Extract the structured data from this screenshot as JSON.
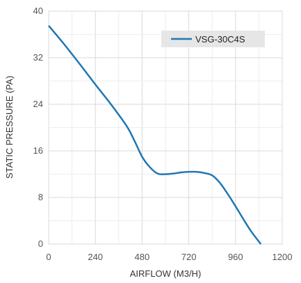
{
  "chart_data": {
    "type": "line",
    "title": "",
    "xlabel": "AIRFLOW (M3/H)",
    "ylabel": "STATIC PRESSURE (PA)",
    "xlim": [
      0,
      1200
    ],
    "ylim": [
      0,
      40
    ],
    "x_ticks": [
      "0",
      "240",
      "480",
      "720",
      "960",
      "1200"
    ],
    "y_ticks": [
      "0",
      "8",
      "16",
      "24",
      "32",
      "40"
    ],
    "grid": true,
    "legend": "top-right",
    "series": [
      {
        "name": "VSG-30C4S",
        "color": "#1f77b4",
        "x": [
          0,
          80,
          160,
          240,
          320,
          400,
          440,
          480,
          520,
          560,
          600,
          640,
          680,
          720,
          760,
          800,
          840,
          880,
          920,
          960,
          1000,
          1040,
          1090
        ],
        "y": [
          37.5,
          34.3,
          30.9,
          27.4,
          24.0,
          20.3,
          17.8,
          15.0,
          13.2,
          12.1,
          12.0,
          12.1,
          12.3,
          12.4,
          12.4,
          12.2,
          11.8,
          10.5,
          8.6,
          6.5,
          4.3,
          2.2,
          0.0
        ]
      }
    ]
  }
}
